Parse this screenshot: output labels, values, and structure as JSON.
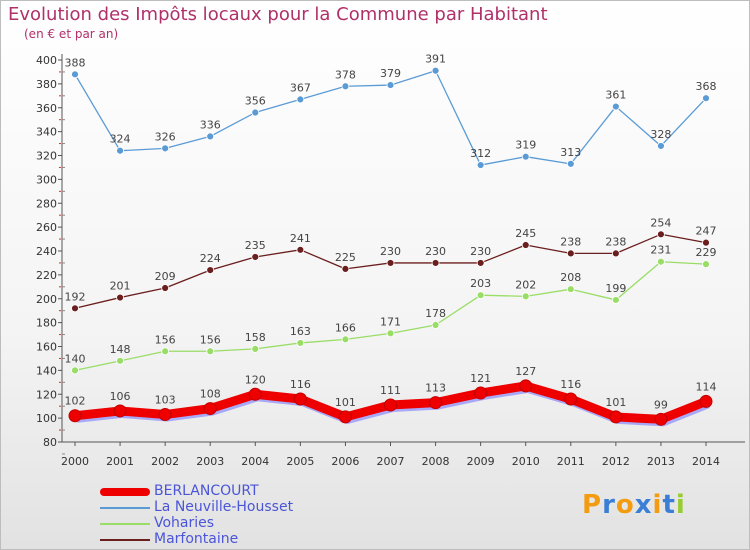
{
  "chart_data": {
    "type": "line",
    "title": "Evolution des Impôts locaux pour la Commune par Habitant",
    "subtitle": "(en € et par an)",
    "x": [
      "2000",
      "2001",
      "2002",
      "2003",
      "2004",
      "2005",
      "2006",
      "2007",
      "2008",
      "2009",
      "2010",
      "2011",
      "2012",
      "2013",
      "2014"
    ],
    "ylim": [
      80,
      400
    ],
    "yticks": [
      80,
      100,
      120,
      140,
      160,
      180,
      200,
      220,
      240,
      260,
      280,
      300,
      320,
      340,
      360,
      380,
      400
    ],
    "grid": false,
    "legend_position": "bottom-left",
    "series": [
      {
        "name": "BERLANCOURT",
        "color": "#ee0000",
        "values": [
          102,
          106,
          103,
          108,
          120,
          116,
          101,
          111,
          113,
          121,
          127,
          116,
          101,
          99,
          114
        ]
      },
      {
        "name": "La Neuville-Housset",
        "color": "#5b9bd5",
        "values": [
          388,
          324,
          326,
          336,
          356,
          367,
          378,
          379,
          391,
          312,
          319,
          313,
          361,
          328,
          368
        ]
      },
      {
        "name": "Voharies",
        "color": "#99dd66",
        "values": [
          140,
          148,
          156,
          156,
          158,
          163,
          166,
          171,
          178,
          203,
          202,
          208,
          199,
          231,
          229
        ]
      },
      {
        "name": "Marfontaine",
        "color": "#6b1e1e",
        "values": [
          192,
          201,
          209,
          224,
          235,
          241,
          225,
          230,
          230,
          230,
          245,
          238,
          238,
          254,
          247
        ]
      }
    ]
  },
  "logo": {
    "text": "Proxiti",
    "colors": [
      "#f39c12",
      "#3a7fd5",
      "#f39c12",
      "#3a7fd5",
      "#f39c12",
      "#3a7fd5",
      "#99cc33"
    ]
  }
}
